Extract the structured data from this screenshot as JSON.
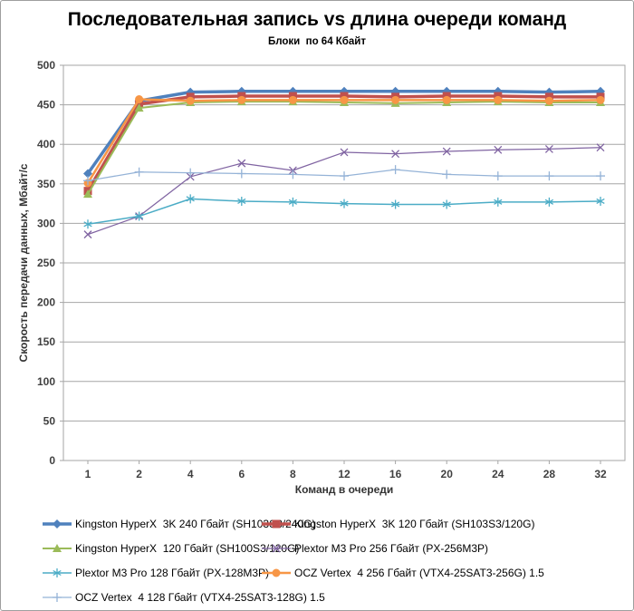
{
  "chart_data": {
    "type": "line",
    "title": "Последовательная запись vs длина очереди команд",
    "subtitle": "Блоки  по 64 Кбайт",
    "xlabel": "Команд в очереди",
    "ylabel": "Скорость  передачи данных, Мбайт/с",
    "categories": [
      "1",
      "2",
      "4",
      "6",
      "8",
      "12",
      "16",
      "20",
      "24",
      "28",
      "32"
    ],
    "ylim": [
      0,
      500
    ],
    "ytick_step": 50,
    "grid": true,
    "legend_position": "bottom",
    "axis_color": "#a6a6a6",
    "tick_label_color": "#404040",
    "series": [
      {
        "name": "Kingston HyperX  3K 240 Гбайт (SH103S3/240G)",
        "color": "#4f81bd",
        "marker": "diamond",
        "values": [
          363,
          455,
          466,
          467,
          467,
          467,
          467,
          467,
          467,
          466,
          467
        ]
      },
      {
        "name": "Kingston HyperX  3K 120 Гбайт (SH103S3/120G)",
        "color": "#c0504d",
        "marker": "square",
        "values": [
          341,
          451,
          460,
          461,
          461,
          461,
          460,
          461,
          461,
          460,
          460
        ]
      },
      {
        "name": "Kingston HyperX  120 Гбайт (SH100S3/120G)",
        "color": "#9bbb59",
        "marker": "triangle",
        "values": [
          337,
          446,
          453,
          454,
          454,
          453,
          452,
          453,
          454,
          453,
          453
        ]
      },
      {
        "name": "Plextor M3 Pro 256 Гбайт (PX-256M3P)",
        "color": "#8064a2",
        "marker": "x",
        "values": [
          286,
          309,
          359,
          376,
          367,
          390,
          388,
          391,
          393,
          394,
          396
        ]
      },
      {
        "name": "Plextor M3 Pro 128 Гбайт (PX-128M3P)",
        "color": "#4bacc6",
        "marker": "asterisk",
        "values": [
          299,
          309,
          331,
          328,
          327,
          325,
          324,
          324,
          327,
          327,
          328
        ]
      },
      {
        "name": "OCZ Vertex  4 256 Гбайт (VTX4-25SAT3-256G) 1.5",
        "color": "#f79646",
        "marker": "circle",
        "values": [
          351,
          457,
          455,
          456,
          456,
          456,
          456,
          456,
          456,
          455,
          456
        ]
      },
      {
        "name": "OCZ Vertex  4 128 Гбайт (VTX4-25SAT3-128G) 1.5",
        "color": "#95b3d7",
        "marker": "plus",
        "values": [
          354,
          365,
          364,
          363,
          362,
          360,
          368,
          362,
          360,
          360,
          360
        ]
      }
    ]
  }
}
